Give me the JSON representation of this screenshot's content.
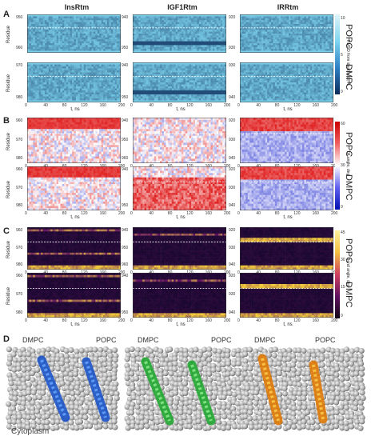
{
  "panels": {
    "A": "A",
    "B": "B",
    "C": "C",
    "D": "D"
  },
  "columns": [
    "InsRtm",
    "IGF1Rtm",
    "IRRtm"
  ],
  "x_ticks": [
    "0",
    "40",
    "80",
    "120",
    "160",
    "200"
  ],
  "x_label": "t, ns",
  "y_label": "Residue",
  "membranes": {
    "popc": "POPC",
    "dmpc": "DMPC"
  },
  "y_ticks": {
    "ins_popc": [
      "950",
      "960"
    ],
    "ins_dmpc": [
      "970",
      "980"
    ],
    "igf_popc": [
      "940",
      "950"
    ],
    "igf_dmpc": [
      "940",
      "950"
    ],
    "ir_popc": [
      "920",
      "930"
    ],
    "ir_dmpc": [
      "930",
      "940"
    ],
    "ins_b_popc": [
      "960",
      "970",
      "980"
    ],
    "ins_b_dmpc": [
      "960",
      "970",
      "980"
    ],
    "igf_b_popc": [
      "940",
      "950",
      "960"
    ],
    "igf_b_dmpc": [
      "940",
      "950"
    ],
    "ir_b_popc": [
      "920",
      "930",
      "940"
    ],
    "ir_b_dmpc": [
      "920",
      "930",
      "940"
    ],
    "ins_c_popc": [
      "960",
      "970",
      "980"
    ],
    "ins_c_dmpc": [
      "960",
      "970",
      "980"
    ],
    "igf_c_popc": [
      "940",
      "950",
      "960"
    ],
    "igf_c_dmpc": [
      "940",
      "950"
    ],
    "ir_c_popc": [
      "920",
      "930",
      "940"
    ],
    "ir_c_dmpc": [
      "920",
      "930",
      "940"
    ]
  },
  "colorbars": {
    "A": {
      "label": "RMSD from ideal helix, Å",
      "ticks": [
        "10",
        "5",
        "0"
      ]
    },
    "B": {
      "label": "Tilt angle, deg",
      "ticks": [
        "60",
        "30",
        "0"
      ]
    },
    "C": {
      "label": "Bend angle, deg",
      "ticks": [
        "45",
        "30",
        "15",
        "0"
      ]
    }
  },
  "panel_d": {
    "labels_left": [
      "DMPC",
      "DMPC",
      "DMPC"
    ],
    "labels_right": [
      "POPC",
      "POPC",
      "POPC"
    ],
    "bottom": "Cytoplasm"
  },
  "colors": {
    "rmsd_dark": "#0b3d7a",
    "rmsd_light": "#7fd6f0",
    "tilt_red": "#e02020",
    "tilt_blue": "#2030d0",
    "bend_dark": "#1a0830",
    "bend_yellow": "#f5d040",
    "helix_blue": "#2a6fe0",
    "helix_green": "#2fbf3a",
    "helix_orange": "#f08a10"
  }
}
